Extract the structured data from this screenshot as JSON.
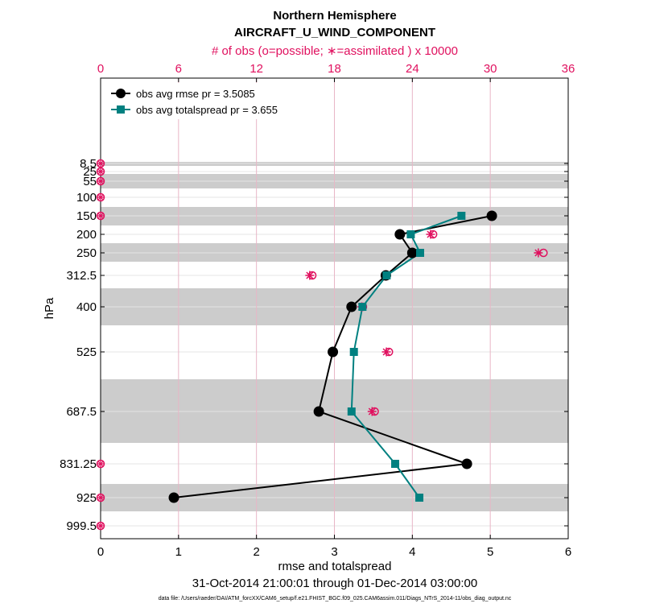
{
  "colors": {
    "rmse": "#000000",
    "spread": "#008080",
    "obs": "#e0115f",
    "band": "#cccccc",
    "grid_h": "#e5e5e5",
    "grid_v": "#e8b6c6"
  },
  "chart_data": {
    "type": "line",
    "title": "Northern Hemisphere",
    "subtitle": "AIRCRAFT_U_WIND_COMPONENT",
    "top_axis_label": "# of obs (o=possible; ∗=assimilated ) x 10000",
    "xlabel": "rmse and totalspread",
    "ylabel": "hPa",
    "date_range": "31-Oct-2014 21:00:01 through 01-Dec-2014 03:00:00",
    "footnote": "data file: /Users/raeder/DAI/ATM_forcXX/CAM6_setup/f.e21.FHIST_BGC.f09_025.CAM6assim.011/Diags_NTrS_2014-11/obs_diag_output.nc",
    "xlim": [
      0,
      6
    ],
    "xticks": [
      "0",
      "1",
      "2",
      "3",
      "4",
      "5",
      "6"
    ],
    "top_xlim": [
      0,
      36
    ],
    "top_xticks": [
      "0",
      "6",
      "12",
      "18",
      "24",
      "30",
      "36"
    ],
    "levels": [
      8.5,
      25,
      55,
      100,
      150,
      200,
      250,
      312.5,
      400,
      525,
      687.5,
      831.25,
      925,
      999.5
    ],
    "level_labels": [
      "8.5",
      "25",
      "55",
      "100",
      "150",
      "200",
      "250",
      "312.5",
      "400",
      "525",
      "687.5",
      "831.25",
      "925",
      "999.5"
    ],
    "series": [
      {
        "name": "obs avg rmse",
        "legend": "obs avg rmse pr = 3.5085",
        "marker": "circle",
        "levels": [
          150,
          200,
          250,
          312.5,
          400,
          525,
          687.5,
          831.25,
          925
        ],
        "values": [
          5.02,
          3.84,
          4.0,
          3.66,
          3.22,
          2.98,
          2.8,
          4.7,
          0.94
        ]
      },
      {
        "name": "obs avg totalspread",
        "legend": "obs avg totalspread pr = 3.655",
        "marker": "square",
        "levels": [
          150,
          200,
          250,
          312.5,
          400,
          525,
          687.5,
          831.25,
          925
        ],
        "values": [
          4.63,
          3.98,
          4.1,
          3.67,
          3.36,
          3.25,
          3.22,
          3.78,
          4.09
        ]
      }
    ],
    "obs_possible": {
      "marker": "o",
      "levels": [
        8.5,
        25,
        55,
        100,
        150,
        200,
        250,
        312.5,
        400,
        525,
        687.5,
        831.25,
        925,
        999.5
      ],
      "values": [
        0,
        0,
        0,
        0,
        0,
        25.6,
        34.1,
        16.3,
        20.2,
        22.2,
        21.1,
        0,
        0,
        0
      ]
    },
    "obs_assimilated": {
      "marker": "∗",
      "levels": [
        200,
        250,
        312.5,
        400,
        525,
        687.5
      ],
      "values": [
        25.4,
        33.7,
        16.1,
        20.1,
        22.0,
        20.9
      ]
    }
  }
}
